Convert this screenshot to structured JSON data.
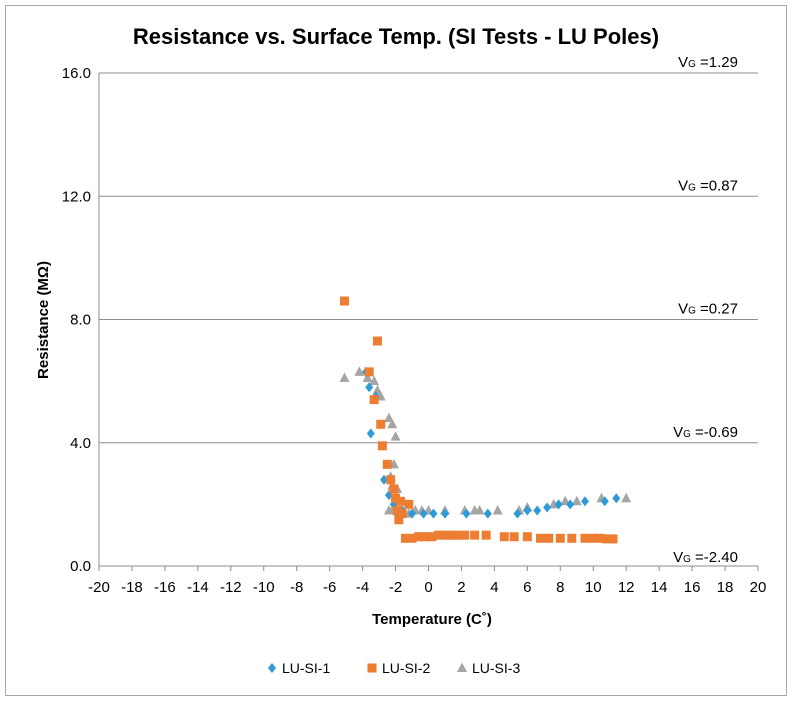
{
  "chart_data": {
    "type": "scatter",
    "title": "Resistance vs. Surface Temp. (SI Tests - LU Poles)",
    "xlabel": "Temperature (C˚)",
    "ylabel": "Resistance (MΩ)",
    "xlim": [
      -20,
      20
    ],
    "ylim": [
      0,
      16
    ],
    "x_ticks": [
      "-20",
      "-18",
      "-16",
      "-14",
      "-12",
      "-10",
      "-8",
      "-6",
      "-4",
      "-2",
      "0",
      "2",
      "4",
      "6",
      "8",
      "10",
      "12",
      "14",
      "16",
      "18",
      "20"
    ],
    "y_ticks": [
      "0.0",
      "4.0",
      "8.0",
      "12.0",
      "16.0"
    ],
    "grid": "horizontal",
    "legend_position": "bottom",
    "annotations": [
      {
        "prefix": "V",
        "sub": "G",
        "text": " =1.29",
        "y": 16
      },
      {
        "prefix": "V",
        "sub": "G",
        "text": " =0.87",
        "y": 12
      },
      {
        "prefix": "V",
        "sub": "G",
        "text": " =0.27",
        "y": 8
      },
      {
        "prefix": "V",
        "sub": "G",
        "text": " =-0.69",
        "y": 4
      },
      {
        "prefix": "V",
        "sub": "G",
        "text": " =-2.40",
        "y": 0
      }
    ],
    "series": [
      {
        "name": "LU-SI-1",
        "marker": "diamond",
        "color": "#2e9bd6",
        "points": [
          [
            -3.8,
            6.3
          ],
          [
            -3.6,
            5.8
          ],
          [
            -3.5,
            4.3
          ],
          [
            -3.2,
            5.5
          ],
          [
            -2.7,
            2.8
          ],
          [
            -2.4,
            2.3
          ],
          [
            -2.1,
            2.0
          ],
          [
            -1.9,
            1.7
          ],
          [
            -1.6,
            1.8
          ],
          [
            -1.0,
            1.7
          ],
          [
            -0.3,
            1.7
          ],
          [
            0.3,
            1.7
          ],
          [
            1.0,
            1.7
          ],
          [
            2.3,
            1.7
          ],
          [
            3.6,
            1.7
          ],
          [
            5.4,
            1.7
          ],
          [
            6.0,
            1.8
          ],
          [
            6.6,
            1.8
          ],
          [
            7.2,
            1.9
          ],
          [
            7.9,
            2.0
          ],
          [
            8.6,
            2.0
          ],
          [
            9.5,
            2.1
          ],
          [
            10.7,
            2.1
          ],
          [
            11.4,
            2.2
          ]
        ]
      },
      {
        "name": "LU-SI-2",
        "marker": "square",
        "color": "#ed7d31",
        "points": [
          [
            -5.1,
            8.6
          ],
          [
            -3.6,
            6.3
          ],
          [
            -3.3,
            5.4
          ],
          [
            -3.1,
            7.3
          ],
          [
            -2.9,
            4.6
          ],
          [
            -2.8,
            3.9
          ],
          [
            -2.5,
            3.3
          ],
          [
            -2.3,
            2.8
          ],
          [
            -2.1,
            2.5
          ],
          [
            -2.0,
            2.2
          ],
          [
            -1.9,
            1.8
          ],
          [
            -1.8,
            1.5
          ],
          [
            -1.7,
            2.1
          ],
          [
            -1.6,
            1.7
          ],
          [
            -1.4,
            0.9
          ],
          [
            -1.2,
            2.0
          ],
          [
            -1.0,
            0.9
          ],
          [
            -0.6,
            0.95
          ],
          [
            -0.2,
            0.95
          ],
          [
            0.2,
            0.95
          ],
          [
            0.6,
            1.0
          ],
          [
            1.0,
            1.0
          ],
          [
            1.4,
            1.0
          ],
          [
            1.8,
            1.0
          ],
          [
            2.2,
            1.0
          ],
          [
            2.8,
            1.0
          ],
          [
            3.5,
            1.0
          ],
          [
            4.6,
            0.95
          ],
          [
            5.2,
            0.95
          ],
          [
            6.0,
            0.95
          ],
          [
            6.8,
            0.9
          ],
          [
            7.3,
            0.9
          ],
          [
            8.0,
            0.9
          ],
          [
            8.7,
            0.9
          ],
          [
            9.5,
            0.9
          ],
          [
            10.0,
            0.9
          ],
          [
            10.4,
            0.9
          ],
          [
            10.8,
            0.88
          ],
          [
            11.2,
            0.88
          ]
        ]
      },
      {
        "name": "LU-SI-3",
        "marker": "triangle",
        "color": "#a5a5a5",
        "points": [
          [
            -5.1,
            6.1
          ],
          [
            -4.2,
            6.3
          ],
          [
            -3.7,
            6.1
          ],
          [
            -3.3,
            6.0
          ],
          [
            -3.1,
            5.7
          ],
          [
            -2.9,
            5.5
          ],
          [
            -2.4,
            4.8
          ],
          [
            -2.2,
            4.6
          ],
          [
            -2.0,
            4.2
          ],
          [
            -2.1,
            3.3
          ],
          [
            -2.3,
            2.9
          ],
          [
            -2.2,
            2.6
          ],
          [
            -1.9,
            2.5
          ],
          [
            -2.0,
            2.2
          ],
          [
            -2.1,
            1.9
          ],
          [
            -2.4,
            1.8
          ],
          [
            -1.6,
            1.8
          ],
          [
            -1.2,
            1.7
          ],
          [
            -0.8,
            1.8
          ],
          [
            -0.4,
            1.8
          ],
          [
            0.0,
            1.8
          ],
          [
            1.0,
            1.8
          ],
          [
            2.2,
            1.8
          ],
          [
            2.8,
            1.8
          ],
          [
            3.1,
            1.8
          ],
          [
            4.2,
            1.8
          ],
          [
            5.5,
            1.8
          ],
          [
            6.0,
            1.9
          ],
          [
            7.6,
            2.0
          ],
          [
            8.3,
            2.1
          ],
          [
            9.0,
            2.1
          ],
          [
            10.5,
            2.2
          ],
          [
            12.0,
            2.2
          ]
        ]
      }
    ]
  }
}
